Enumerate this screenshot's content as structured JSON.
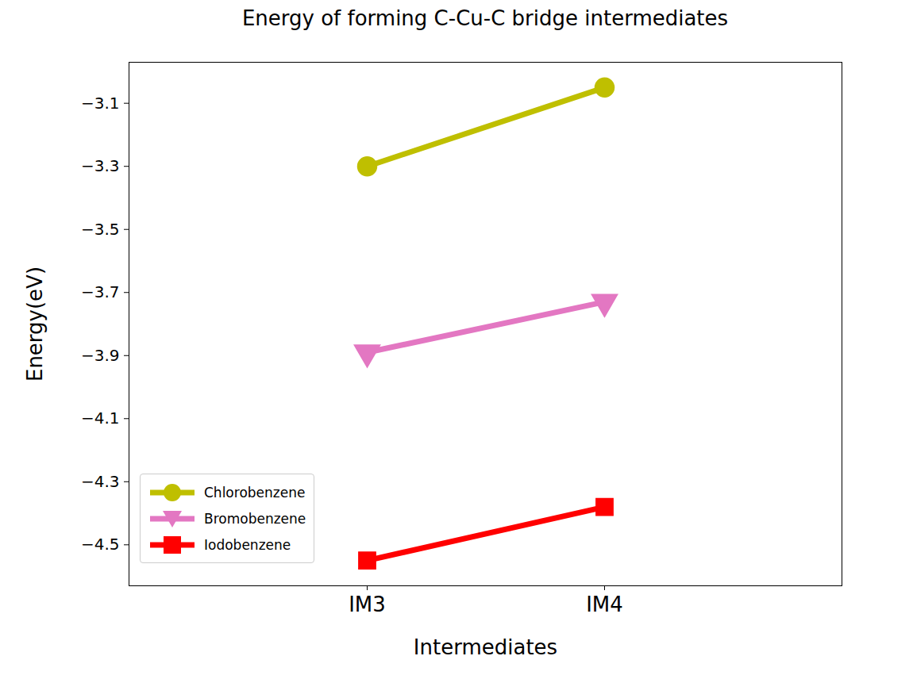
{
  "chart_data": {
    "type": "line",
    "title": "Energy of forming C-Cu-C bridge intermediates",
    "x_label": "Intermediates",
    "y_label": "Energy(eV)",
    "categories": [
      "IM3",
      "IM4"
    ],
    "series": [
      {
        "name": "Chlorobenzene",
        "color": "#bfbf00",
        "marker": "circle",
        "values": [
          -3.3,
          -3.05
        ]
      },
      {
        "name": "Bromobenzene",
        "color": "#e377c2",
        "marker": "triangle-down",
        "values": [
          -3.89,
          -3.73
        ]
      },
      {
        "name": "Iodobenzene",
        "color": "#ff0000",
        "marker": "square",
        "values": [
          -4.55,
          -4.38
        ]
      }
    ],
    "ylim": [
      -4.63,
      -2.97
    ],
    "yticks": [
      -4.5,
      -4.3,
      -4.1,
      -3.9,
      -3.7,
      -3.5,
      -3.3,
      -3.1
    ],
    "grid": false,
    "legend": "lower left"
  }
}
